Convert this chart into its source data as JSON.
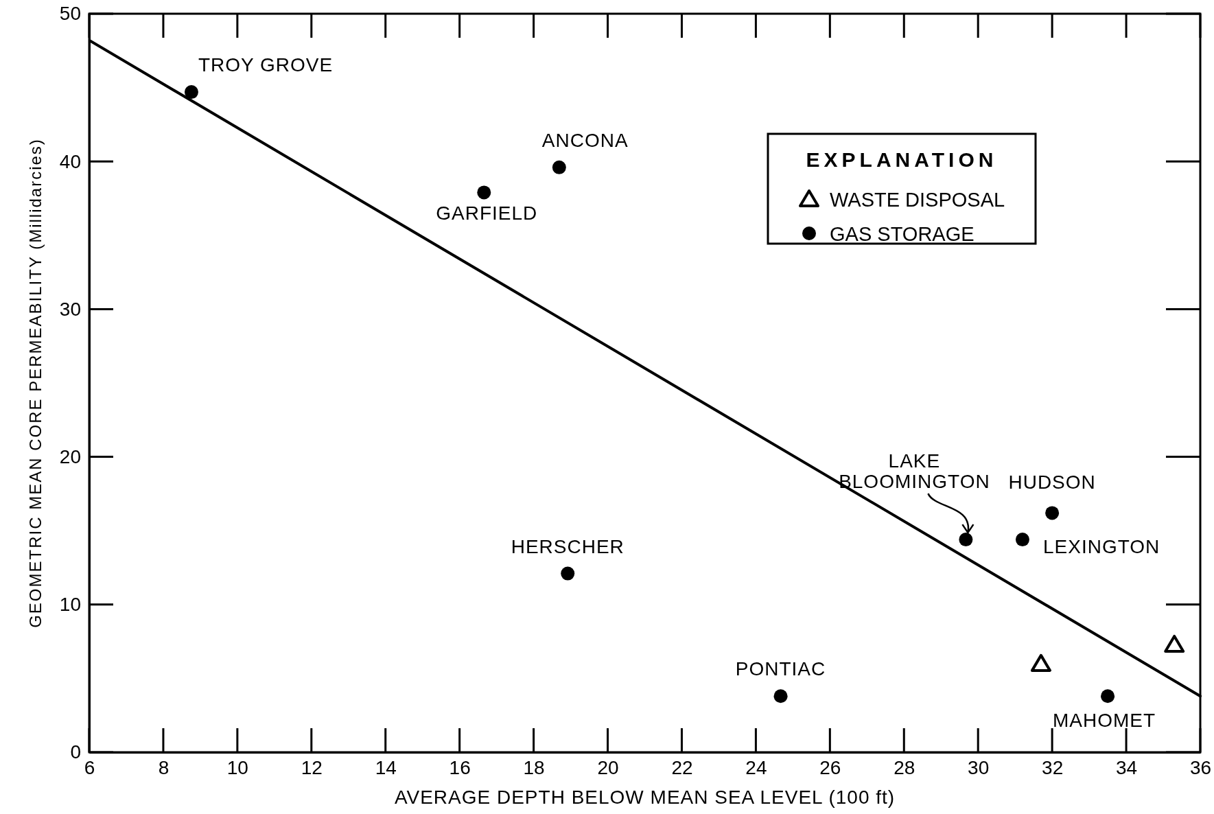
{
  "chart_data": {
    "type": "scatter",
    "xlabel": "AVERAGE DEPTH BELOW MEAN SEA LEVEL (100 ft)",
    "ylabel": "GEOMETRIC MEAN CORE PERMEABILITY (Millidarcies)",
    "legend_title": "EXPLANATION",
    "xlim": [
      6,
      36
    ],
    "xticks": [
      6,
      8,
      10,
      12,
      14,
      16,
      18,
      20,
      22,
      24,
      26,
      28,
      30,
      32,
      34,
      36
    ],
    "ylim": [
      0,
      50
    ],
    "yticks": [
      0,
      10,
      20,
      30,
      40,
      50
    ],
    "grid": false,
    "legend": "top right",
    "series": [
      {
        "name": "WASTE DISPOSAL",
        "type": "scatter",
        "marker": "triangle",
        "color": "#000000",
        "x": [
          31.7,
          35.3
        ],
        "values": [
          6.0,
          7.3
        ]
      },
      {
        "name": "GAS STORAGE",
        "type": "scatter",
        "marker": "circle",
        "color": "#000000",
        "x": [
          8.76,
          18.69,
          16.66,
          18.92,
          24.67,
          29.67,
          31.2,
          32.0,
          33.5
        ],
        "values": [
          44.7,
          39.6,
          37.9,
          12.1,
          3.8,
          14.4,
          14.4,
          16.2,
          3.8
        ]
      },
      {
        "type": "line",
        "marker": "none",
        "line_style": "solid",
        "color": "#000000",
        "x": [
          6,
          36
        ],
        "values": [
          48.2,
          3.8
        ]
      }
    ],
    "annotations": [
      {
        "text": "TROY GROVE",
        "x": 8.76,
        "y": 44.7
      },
      {
        "text": "ANCONA",
        "x": 18.69,
        "y": 39.6
      },
      {
        "text": "GARFIELD",
        "x": 16.66,
        "y": 37.9
      },
      {
        "text": "HERSCHER",
        "x": 18.92,
        "y": 12.1
      },
      {
        "text": "PONTIAC",
        "x": 24.67,
        "y": 3.8
      },
      {
        "text": "LAKE BLOOMINGTON",
        "x": 29.67,
        "y": 14.4
      },
      {
        "text": "LEXINGTON",
        "x": 31.2,
        "y": 14.4
      },
      {
        "text": "HUDSON",
        "x": 32.0,
        "y": 16.2
      },
      {
        "text": "MAHOMET",
        "x": 33.5,
        "y": 3.8
      }
    ]
  }
}
